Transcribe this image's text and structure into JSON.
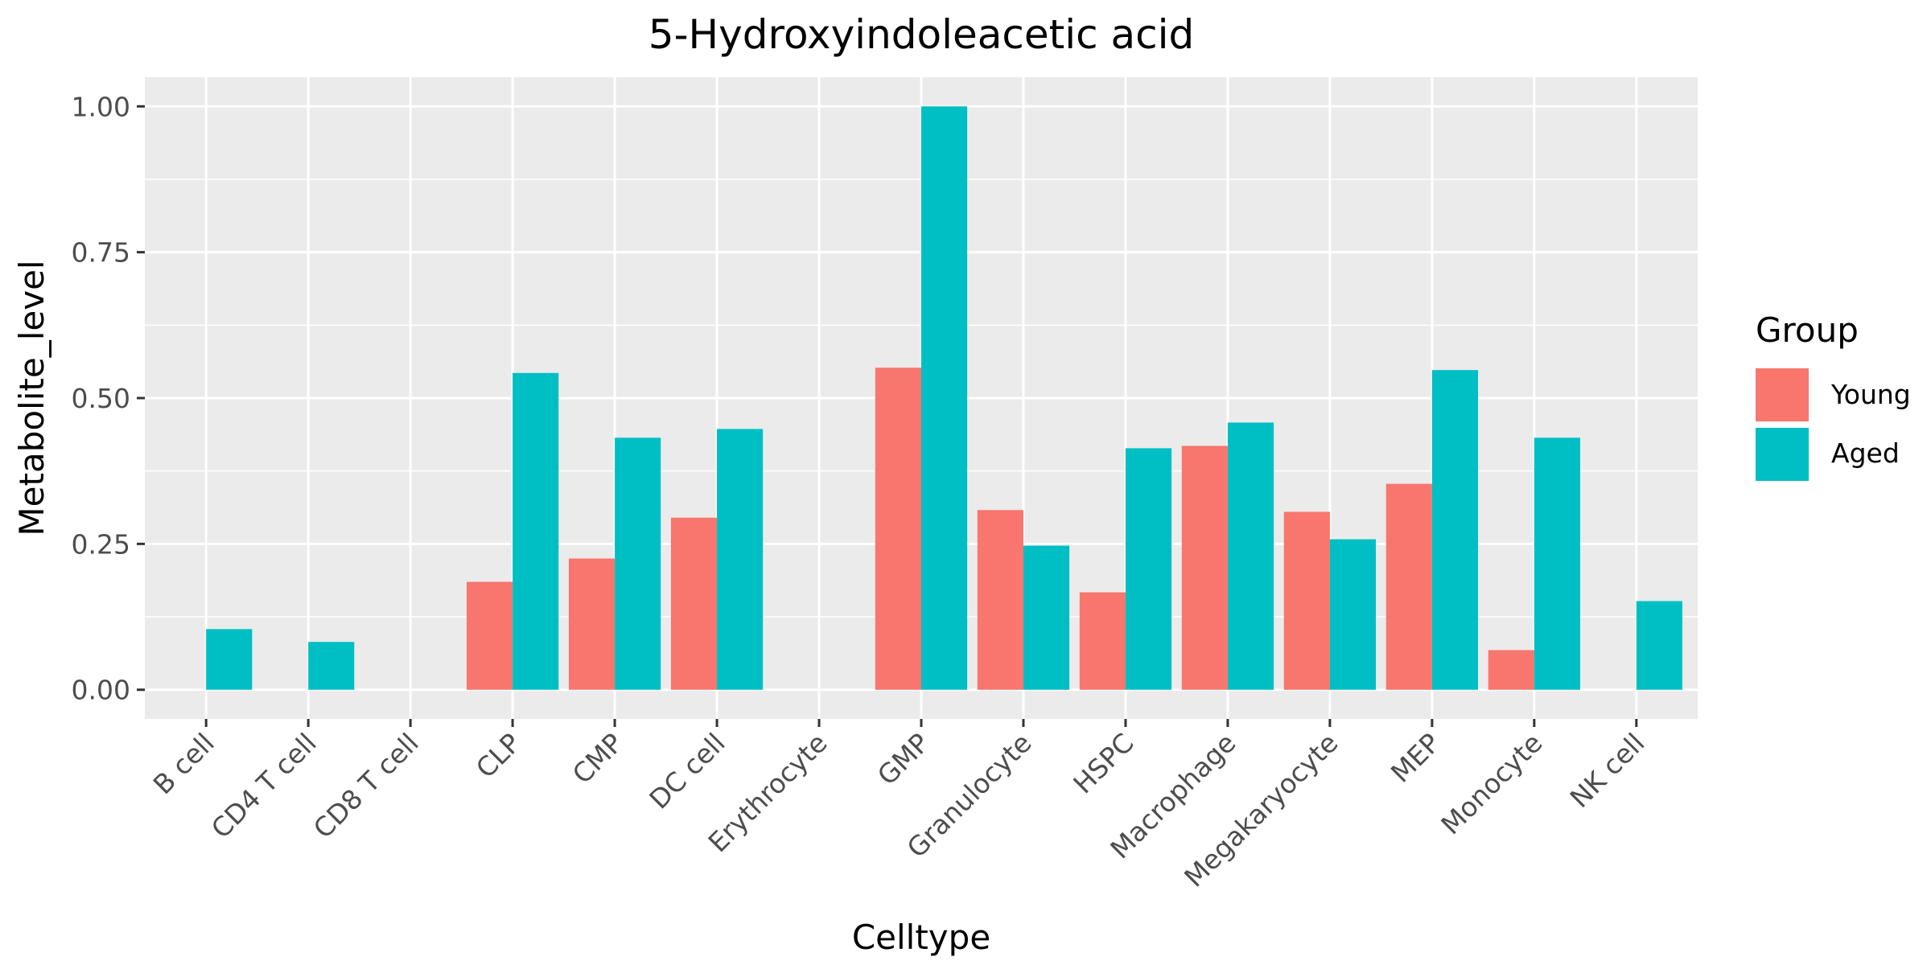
{
  "chart_data": {
    "type": "bar",
    "title": "5-Hydroxyindoleacetic acid",
    "xlabel": "Celltype",
    "ylabel": "Metabolite_level",
    "ylim": [
      -0.05,
      1.05
    ],
    "yticks": [
      0.0,
      0.25,
      0.5,
      0.75,
      1.0
    ],
    "ytick_labels": [
      "0.00",
      "0.25",
      "0.50",
      "0.75",
      "1.00"
    ],
    "categories": [
      "B cell",
      "CD4 T cell",
      "CD8 T cell",
      "CLP",
      "CMP",
      "DC cell",
      "Erythrocyte",
      "GMP",
      "Granulocyte",
      "HSPC",
      "Macrophage",
      "Megakaryocyte",
      "MEP",
      "Monocyte",
      "NK cell"
    ],
    "series": [
      {
        "name": "Young",
        "color": "#F8766D",
        "values": [
          null,
          null,
          null,
          0.185,
          0.225,
          0.295,
          null,
          0.552,
          0.308,
          0.167,
          0.418,
          0.305,
          0.353,
          0.068,
          null
        ]
      },
      {
        "name": "Aged",
        "color": "#00BFC4",
        "values": [
          0.104,
          0.082,
          null,
          0.543,
          0.432,
          0.447,
          null,
          1.0,
          0.247,
          0.414,
          0.458,
          0.258,
          0.548,
          0.432,
          0.152
        ]
      }
    ],
    "legend": {
      "title": "Group",
      "position": "right"
    },
    "grid": true,
    "panel_background": "#EBEBEB"
  }
}
